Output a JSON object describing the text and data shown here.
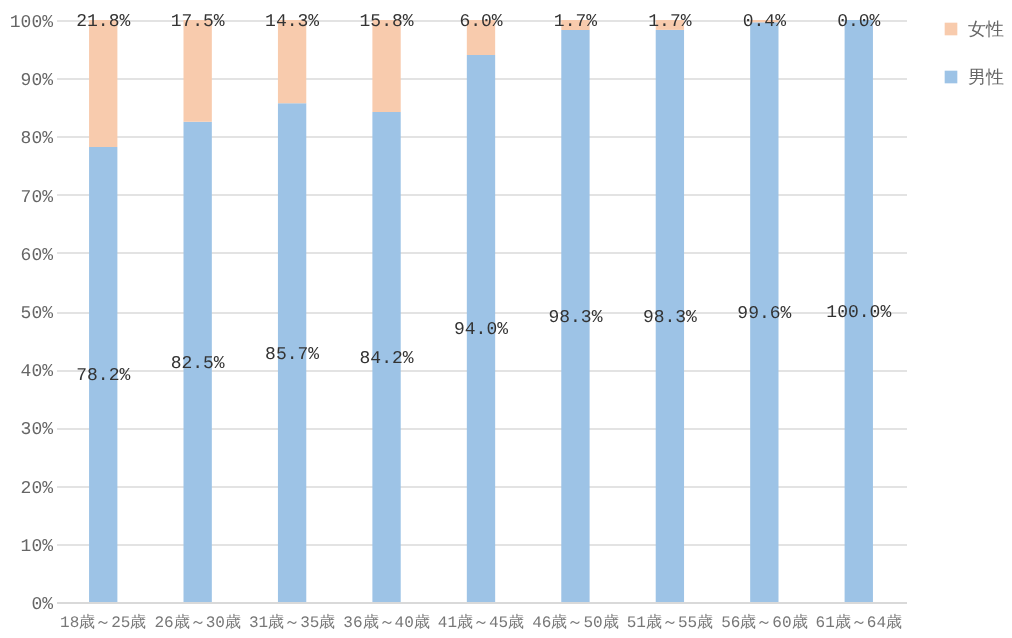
{
  "chart_data": {
    "type": "bar",
    "stacked": true,
    "categories": [
      "18歳～25歳",
      "26歳～30歳",
      "31歳～35歳",
      "36歳～40歳",
      "41歳～45歳",
      "46歳～50歳",
      "51歳～55歳",
      "56歳～60歳",
      "61歳～64歳"
    ],
    "series": [
      {
        "name": "男性",
        "color": "#9dc3e6",
        "values": [
          78.2,
          82.5,
          85.7,
          84.2,
          94.0,
          98.3,
          98.3,
          99.6,
          100.0
        ],
        "value_labels": [
          "78.2%",
          "82.5%",
          "85.7%",
          "84.2%",
          "94.0%",
          "98.3%",
          "98.3%",
          "99.6%",
          "100.0%"
        ]
      },
      {
        "name": "女性",
        "color": "#f8cbad",
        "values": [
          21.8,
          17.5,
          14.3,
          15.8,
          6.0,
          1.7,
          1.7,
          0.4,
          0.0
        ],
        "value_labels": [
          "21.8%",
          "17.5%",
          "14.3%",
          "15.8%",
          "6.0%",
          "1.7%",
          "1.7%",
          "0.4%",
          "0.0%"
        ]
      }
    ],
    "ylim": [
      0,
      100
    ],
    "yticks": [
      {
        "value": 0,
        "label": "0%"
      },
      {
        "value": 10,
        "label": "10%"
      },
      {
        "value": 20,
        "label": "20%"
      },
      {
        "value": 30,
        "label": "30%"
      },
      {
        "value": 40,
        "label": "40%"
      },
      {
        "value": 50,
        "label": "50%"
      },
      {
        "value": 60,
        "label": "60%"
      },
      {
        "value": 70,
        "label": "70%"
      },
      {
        "value": 80,
        "label": "80%"
      },
      {
        "value": 90,
        "label": "90%"
      },
      {
        "value": 100,
        "label": "100%"
      }
    ],
    "grid": "y",
    "legend": "right"
  }
}
